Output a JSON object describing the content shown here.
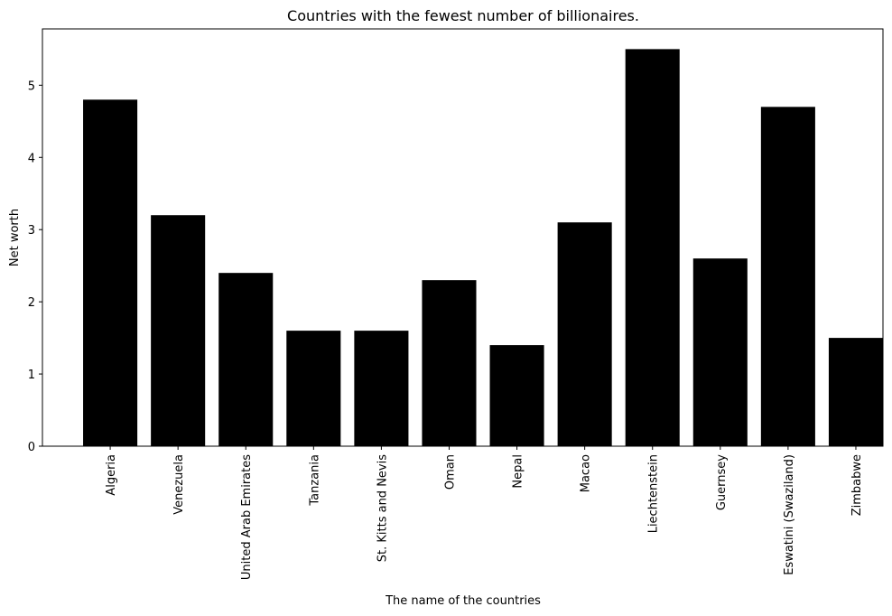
{
  "chart_data": {
    "type": "bar",
    "title": "Countries with the fewest number of billionaires.",
    "xlabel": "The name of the countries",
    "ylabel": "Net worth",
    "categories": [
      "Algeria",
      "Venezuela",
      "United Arab Emirates",
      "Tanzania",
      "St. Kitts and Nevis",
      "Oman",
      "Nepal",
      "Macao",
      "Liechtenstein",
      "Guernsey",
      "Eswatini (Swaziland)",
      "Zimbabwe"
    ],
    "values": [
      4.8,
      3.2,
      2.4,
      1.6,
      1.6,
      2.3,
      1.4,
      3.1,
      5.5,
      2.6,
      4.7,
      1.5
    ],
    "ylim": [
      0,
      5.78
    ],
    "yticks": [
      0,
      1,
      2,
      3,
      4,
      5
    ],
    "grid": false,
    "bar_color": "#000000"
  }
}
